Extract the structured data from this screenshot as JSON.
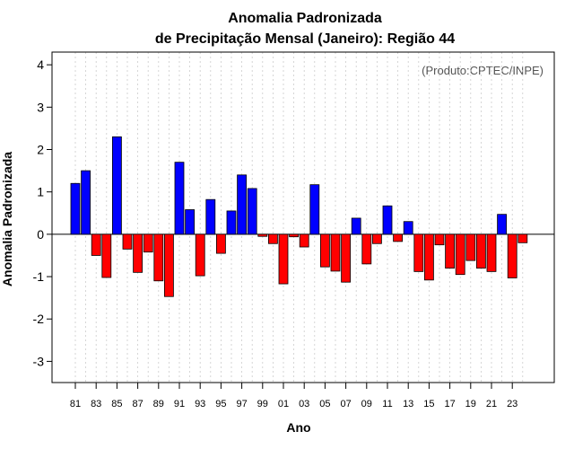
{
  "chart_data": {
    "type": "bar",
    "title_line1": "Anomalia Padronizada",
    "title_line2": "de Precipitação Mensal (Janeiro): Região 44",
    "xlabel": "Ano",
    "ylabel": "Anomalia Padronizada",
    "source": "(Produto:CPTEC/INPE)",
    "ylim": [
      -3.5,
      4.3
    ],
    "yticks": [
      -3,
      -2,
      -1,
      0,
      1,
      2,
      3,
      4
    ],
    "yticks_label": [
      "-3",
      "-2",
      "-1",
      "0",
      "1",
      "2",
      "3",
      "4"
    ],
    "categories": [
      "81",
      "82",
      "83",
      "84",
      "85",
      "86",
      "87",
      "88",
      "89",
      "90",
      "91",
      "92",
      "93",
      "94",
      "95",
      "96",
      "97",
      "98",
      "99",
      "00",
      "01",
      "02",
      "03",
      "04",
      "05",
      "06",
      "07",
      "08",
      "09",
      "10",
      "11",
      "12",
      "13",
      "14",
      "15",
      "16",
      "17",
      "18",
      "19",
      "20",
      "21",
      "22",
      "23",
      "24"
    ],
    "xtick_labels": [
      "81",
      "83",
      "85",
      "87",
      "89",
      "91",
      "93",
      "95",
      "97",
      "99",
      "01",
      "03",
      "05",
      "07",
      "09",
      "11",
      "13",
      "15",
      "17",
      "19",
      "21",
      "23"
    ],
    "values": [
      1.2,
      1.5,
      -0.5,
      -1.02,
      2.3,
      -0.35,
      -0.9,
      -0.42,
      -1.1,
      -1.47,
      1.7,
      0.58,
      -0.98,
      0.82,
      -0.45,
      0.55,
      1.4,
      1.08,
      -0.05,
      -0.22,
      -1.17,
      -0.06,
      -0.3,
      1.17,
      -0.77,
      -0.87,
      -1.13,
      0.38,
      -0.7,
      -0.22,
      0.67,
      -0.17,
      0.3,
      -0.88,
      -1.08,
      -0.25,
      -0.8,
      -0.95,
      -0.62,
      -0.8,
      -0.88,
      0.47,
      -1.03,
      -0.2
    ],
    "colors": {
      "positive": "#0000ff",
      "negative": "#ff0000",
      "grid": "#cccccc"
    }
  }
}
